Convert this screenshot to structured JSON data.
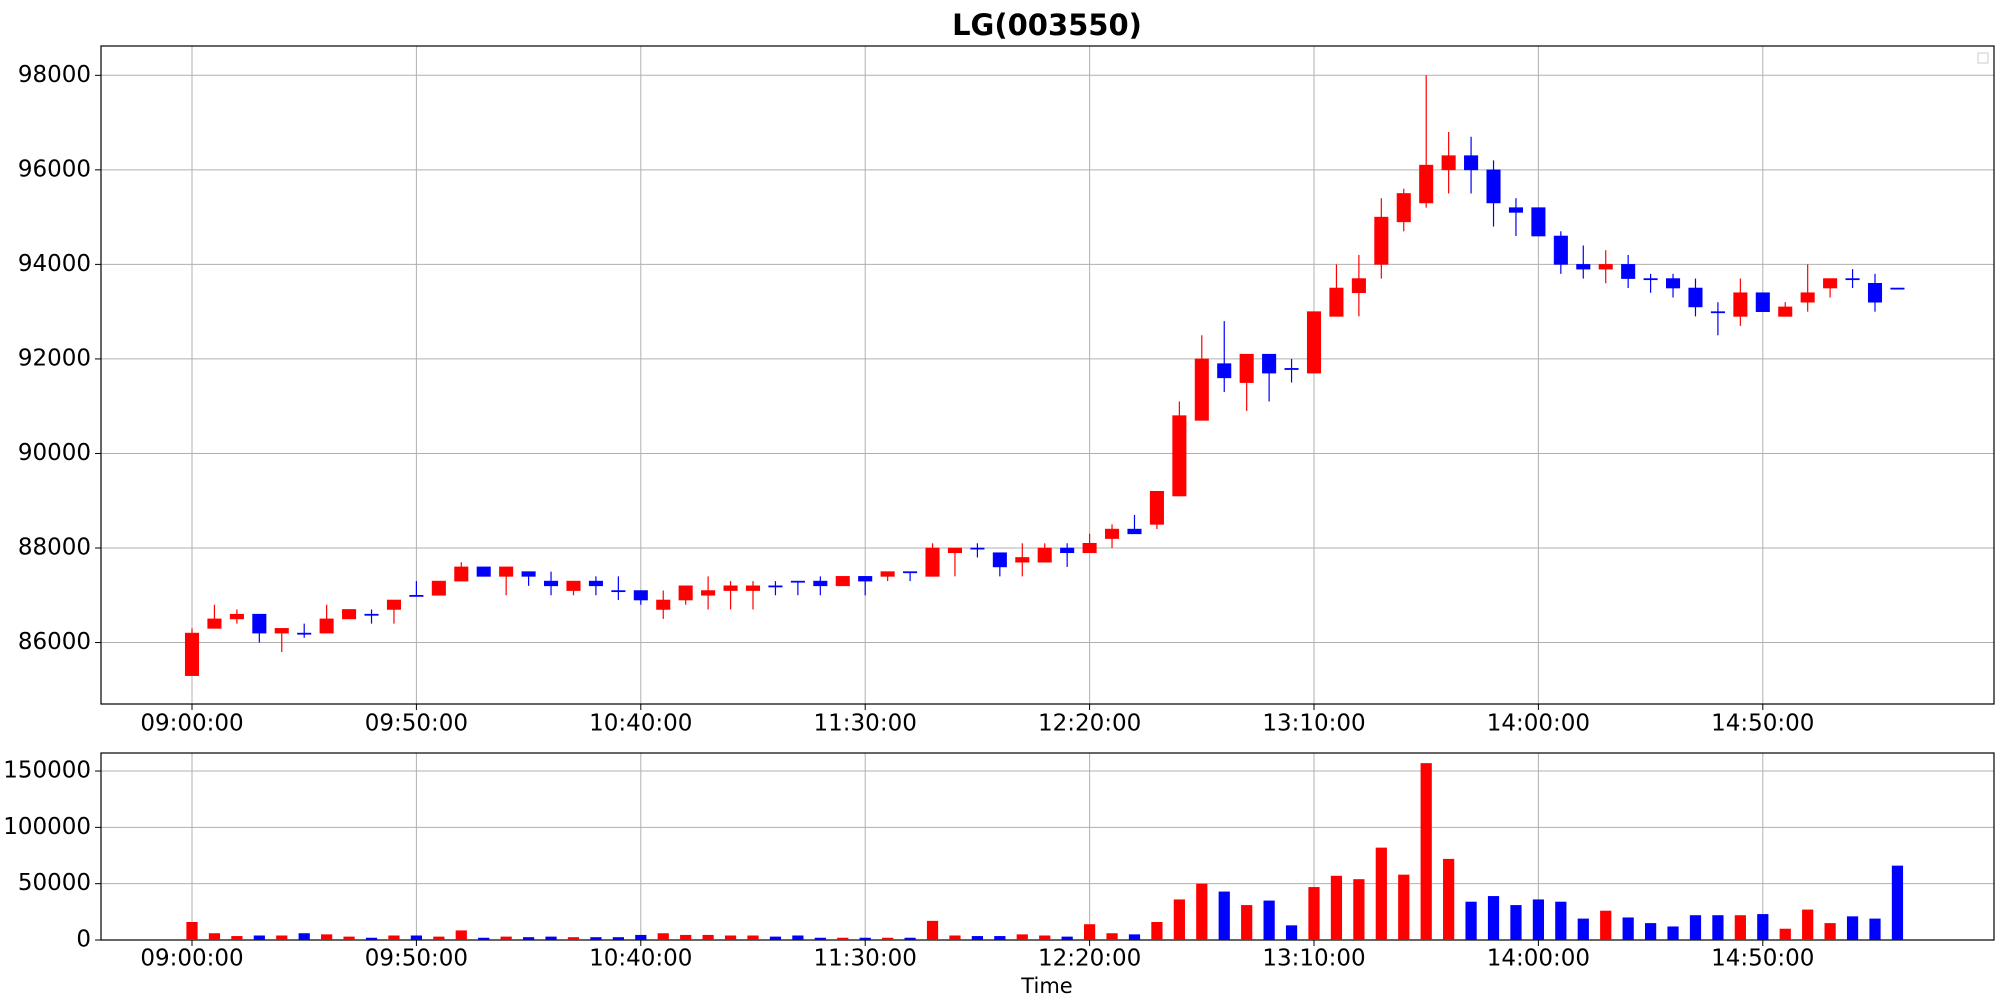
{
  "chart_data": {
    "type": "candlestick",
    "title": "LG(003550)",
    "xlabel": "Time",
    "categories": [
      "09:00:00",
      null,
      null,
      null,
      null,
      null,
      null,
      null,
      null,
      null,
      "09:50:00",
      null,
      null,
      null,
      null,
      null,
      null,
      null,
      null,
      null,
      "10:40:00",
      null,
      null,
      null,
      null,
      null,
      null,
      null,
      null,
      null,
      "11:30:00",
      null,
      null,
      null,
      null,
      null,
      null,
      null,
      null,
      null,
      "12:20:00",
      null,
      null,
      null,
      null,
      null,
      null,
      null,
      null,
      null,
      "13:10:00",
      null,
      null,
      null,
      null,
      null,
      null,
      null,
      null,
      null,
      "14:00:00",
      null,
      null,
      null,
      null,
      null,
      null,
      null,
      null,
      null,
      "14:50:00",
      null,
      null,
      null,
      null,
      null,
      null
    ],
    "open": [
      85300,
      86300,
      86500,
      86600,
      86200,
      86200,
      86200,
      86500,
      86600,
      86700,
      87000,
      87000,
      87300,
      87600,
      87400,
      87500,
      87300,
      87100,
      87300,
      87100,
      87100,
      86700,
      86900,
      87000,
      87100,
      87100,
      87200,
      87300,
      87300,
      87200,
      87400,
      87400,
      87500,
      87400,
      87900,
      88000,
      87900,
      87700,
      87700,
      88000,
      87900,
      88200,
      88400,
      88500,
      89100,
      90700,
      91900,
      91500,
      92100,
      91800,
      91700,
      92900,
      93400,
      94000,
      94900,
      95300,
      96000,
      96300,
      96000,
      95200,
      95200,
      94600,
      94000,
      93900,
      94000,
      93700,
      93700,
      93500,
      93000,
      92900,
      93400,
      92900,
      93200,
      93500,
      93700,
      93600,
      93500
    ],
    "high": [
      86300,
      86800,
      86700,
      86600,
      86300,
      86400,
      86800,
      86700,
      86700,
      86900,
      87300,
      87300,
      87700,
      87600,
      87600,
      87500,
      87500,
      87300,
      87400,
      87400,
      87100,
      87100,
      87200,
      87400,
      87300,
      87300,
      87300,
      87300,
      87400,
      87400,
      87400,
      87500,
      87500,
      88100,
      88000,
      88100,
      87900,
      88100,
      88100,
      88100,
      88300,
      88500,
      88700,
      89200,
      91100,
      92500,
      92800,
      92100,
      92100,
      92000,
      93000,
      94000,
      94200,
      95400,
      95600,
      98000,
      96800,
      96700,
      96200,
      95400,
      95200,
      94700,
      94400,
      94300,
      94200,
      93800,
      93800,
      93700,
      93200,
      93700,
      93400,
      93200,
      94000,
      93700,
      93900,
      93800,
      93500
    ],
    "low": [
      85300,
      86300,
      86400,
      86000,
      85800,
      86100,
      86200,
      86500,
      86400,
      86400,
      87000,
      87000,
      87300,
      87400,
      87000,
      87200,
      87000,
      87000,
      87000,
      86900,
      86800,
      86500,
      86800,
      86700,
      86700,
      86700,
      87000,
      87000,
      87000,
      87200,
      87000,
      87300,
      87300,
      87400,
      87400,
      87800,
      87400,
      87400,
      87700,
      87600,
      87900,
      88000,
      88300,
      88400,
      89100,
      90700,
      91300,
      90900,
      91100,
      91500,
      91700,
      92900,
      92900,
      93700,
      94700,
      95200,
      95500,
      95500,
      94800,
      94600,
      94600,
      93800,
      93700,
      93600,
      93500,
      93400,
      93300,
      92900,
      92500,
      92700,
      93000,
      92900,
      93000,
      93300,
      93500,
      93000,
      93500
    ],
    "close": [
      86200,
      86500,
      86600,
      86200,
      86300,
      86200,
      86500,
      86700,
      86600,
      86900,
      87000,
      87300,
      87600,
      87400,
      87600,
      87400,
      87200,
      87300,
      87200,
      87100,
      86900,
      86900,
      87200,
      87100,
      87200,
      87200,
      87200,
      87300,
      87200,
      87400,
      87300,
      87500,
      87500,
      88000,
      88000,
      88000,
      87600,
      87800,
      88000,
      87900,
      88100,
      88400,
      88300,
      89200,
      90800,
      92000,
      91600,
      92100,
      91700,
      91800,
      93000,
      93500,
      93700,
      95000,
      95500,
      96100,
      96300,
      96000,
      95300,
      95100,
      94600,
      94000,
      93900,
      94000,
      93700,
      93700,
      93500,
      93100,
      93000,
      93400,
      93000,
      93100,
      93400,
      93700,
      93700,
      93200,
      93500
    ],
    "up_color": "#ff0000",
    "down_color": "#0000ff",
    "ylim": [
      84700,
      98620
    ],
    "yticks": [
      86000,
      88000,
      90000,
      92000,
      94000,
      96000,
      98000
    ],
    "grid": true,
    "volume": {
      "values": [
        16000,
        6000,
        3500,
        4000,
        4000,
        6000,
        5000,
        3000,
        2000,
        4000,
        4000,
        3000,
        8500,
        2000,
        3000,
        2500,
        3000,
        2500,
        2500,
        2500,
        4500,
        6000,
        4500,
        4500,
        4000,
        4000,
        3000,
        4000,
        2000,
        2000,
        2000,
        2000,
        2000,
        17000,
        4000,
        3500,
        3500,
        5000,
        4000,
        3000,
        14000,
        6000,
        5000,
        16000,
        36000,
        50000,
        43000,
        31000,
        35000,
        13000,
        47000,
        57000,
        54000,
        82000,
        58000,
        157000,
        72000,
        34000,
        39000,
        31000,
        36000,
        34000,
        19000,
        26000,
        20000,
        15000,
        12000,
        22000,
        22000,
        22000,
        23000,
        10000,
        27000,
        15000,
        21000,
        19000,
        66000
      ],
      "ylim": [
        0,
        166000
      ],
      "yticks": [
        0,
        50000,
        100000,
        150000
      ]
    }
  }
}
